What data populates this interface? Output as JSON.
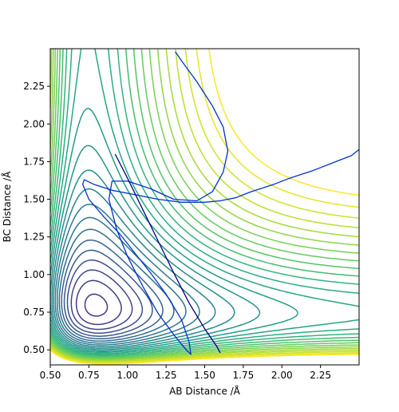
{
  "chart_data": {
    "type": "contour",
    "title": "",
    "xlabel": "AB Distance /Å",
    "ylabel": "BC Distance /Å",
    "xlim": [
      0.5,
      2.5
    ],
    "ylim": [
      0.4,
      2.5
    ],
    "xticks": [
      0.5,
      0.75,
      1.0,
      1.25,
      1.5,
      1.75,
      2.0,
      2.25
    ],
    "xtick_labels": [
      "0.50",
      "0.75",
      "1.00",
      "1.25",
      "1.50",
      "1.75",
      "2.00",
      "2.25"
    ],
    "yticks": [
      0.5,
      0.75,
      1.0,
      1.25,
      1.5,
      1.75,
      2.0,
      2.25
    ],
    "ytick_labels": [
      "0.50",
      "0.75",
      "1.00",
      "1.25",
      "1.50",
      "1.75",
      "2.00",
      "2.25"
    ],
    "grid": false,
    "colormap": "viridis",
    "contour_color_low": "#440154",
    "contour_color_high": "#fde725",
    "contour_levels": 30,
    "trajectory_series": [
      {
        "color": "#0033cc",
        "points": [
          [
            2.5,
            1.83
          ],
          [
            2.45,
            1.79
          ],
          [
            2.35,
            1.75
          ],
          [
            2.2,
            1.69
          ],
          [
            2.05,
            1.64
          ],
          [
            1.95,
            1.6
          ],
          [
            1.8,
            1.55
          ],
          [
            1.7,
            1.51
          ],
          [
            1.6,
            1.49
          ],
          [
            1.5,
            1.48
          ],
          [
            1.35,
            1.48
          ],
          [
            1.2,
            1.5
          ],
          [
            1.05,
            1.53
          ],
          [
            0.9,
            1.56
          ],
          [
            0.78,
            1.6
          ],
          [
            0.72,
            1.63
          ],
          [
            0.71,
            1.6
          ],
          [
            0.75,
            1.5
          ],
          [
            0.85,
            1.38
          ],
          [
            0.95,
            1.27
          ],
          [
            1.05,
            1.14
          ],
          [
            1.15,
            1.01
          ],
          [
            1.25,
            0.87
          ],
          [
            1.35,
            0.7
          ],
          [
            1.4,
            0.55
          ],
          [
            1.41,
            0.47
          ],
          [
            1.38,
            0.5
          ],
          [
            1.3,
            0.6
          ],
          [
            1.2,
            0.74
          ],
          [
            1.1,
            0.92
          ],
          [
            1.0,
            1.12
          ],
          [
            0.93,
            1.3
          ],
          [
            0.88,
            1.5
          ],
          [
            0.9,
            1.62
          ],
          [
            1.0,
            1.62
          ],
          [
            1.15,
            1.57
          ],
          [
            1.3,
            1.5
          ],
          [
            1.45,
            1.49
          ],
          [
            1.55,
            1.55
          ],
          [
            1.62,
            1.68
          ],
          [
            1.65,
            1.82
          ],
          [
            1.62,
            1.98
          ],
          [
            1.55,
            2.12
          ],
          [
            1.45,
            2.28
          ],
          [
            1.35,
            2.42
          ],
          [
            1.31,
            2.48
          ]
        ]
      },
      {
        "color": "#000080",
        "points": [
          [
            0.92,
            1.8
          ],
          [
            1.0,
            1.64
          ],
          [
            1.1,
            1.43
          ],
          [
            1.2,
            1.22
          ],
          [
            1.3,
            1.01
          ],
          [
            1.4,
            0.81
          ],
          [
            1.5,
            0.64
          ],
          [
            1.58,
            0.52
          ],
          [
            1.6,
            0.48
          ]
        ]
      }
    ]
  }
}
